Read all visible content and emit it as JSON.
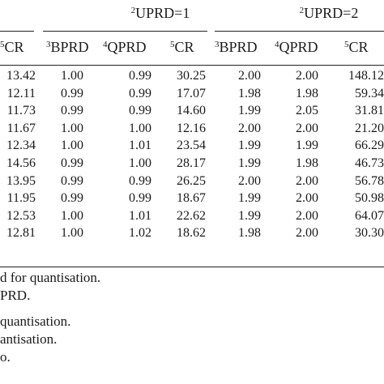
{
  "groups": [
    {
      "sup": "2",
      "label": "UPRD=1"
    },
    {
      "sup": "2",
      "label": "UPRD=2"
    }
  ],
  "headers": [
    {
      "sup": "5",
      "label": "CR"
    },
    {
      "sup": "3",
      "label": "BPRD"
    },
    {
      "sup": "4",
      "label": "QPRD"
    },
    {
      "sup": "5",
      "label": "CR"
    },
    {
      "sup": "3",
      "label": "BPRD"
    },
    {
      "sup": "4",
      "label": "QPRD"
    },
    {
      "sup": "5",
      "label": "CR"
    }
  ],
  "rows": [
    [
      "13.42",
      "1.00",
      "0.99",
      "30.25",
      "2.00",
      "2.00",
      "148.12"
    ],
    [
      "12.11",
      "0.99",
      "0.99",
      "17.07",
      "1.98",
      "1.98",
      "59.34"
    ],
    [
      "11.73",
      "0.99",
      "0.99",
      "14.60",
      "1.99",
      "2.05",
      "31.81"
    ],
    [
      "11.67",
      "1.00",
      "1.00",
      "12.16",
      "2.00",
      "2.00",
      "21.20"
    ],
    [
      "12.34",
      "1.00",
      "1.01",
      "23.54",
      "1.99",
      "1.99",
      "66.29"
    ],
    [
      "14.56",
      "0.99",
      "1.00",
      "28.17",
      "1.99",
      "1.98",
      "46.73"
    ],
    [
      "13.95",
      "0.99",
      "0.99",
      "26.25",
      "2.00",
      "2.00",
      "56.78"
    ],
    [
      "11.95",
      "0.99",
      "0.99",
      "18.67",
      "1.99",
      "2.00",
      "50.98"
    ],
    [
      "12.53",
      "1.00",
      "1.01",
      "22.62",
      "1.99",
      "2.00",
      "64.07"
    ],
    [
      "12.81",
      "1.00",
      "1.02",
      "18.62",
      "1.98",
      "2.00",
      "30.30"
    ]
  ],
  "footnotes": [
    "d for quantisation.",
    "PRD.",
    "quantisation.",
    "antisation.",
    "o."
  ]
}
